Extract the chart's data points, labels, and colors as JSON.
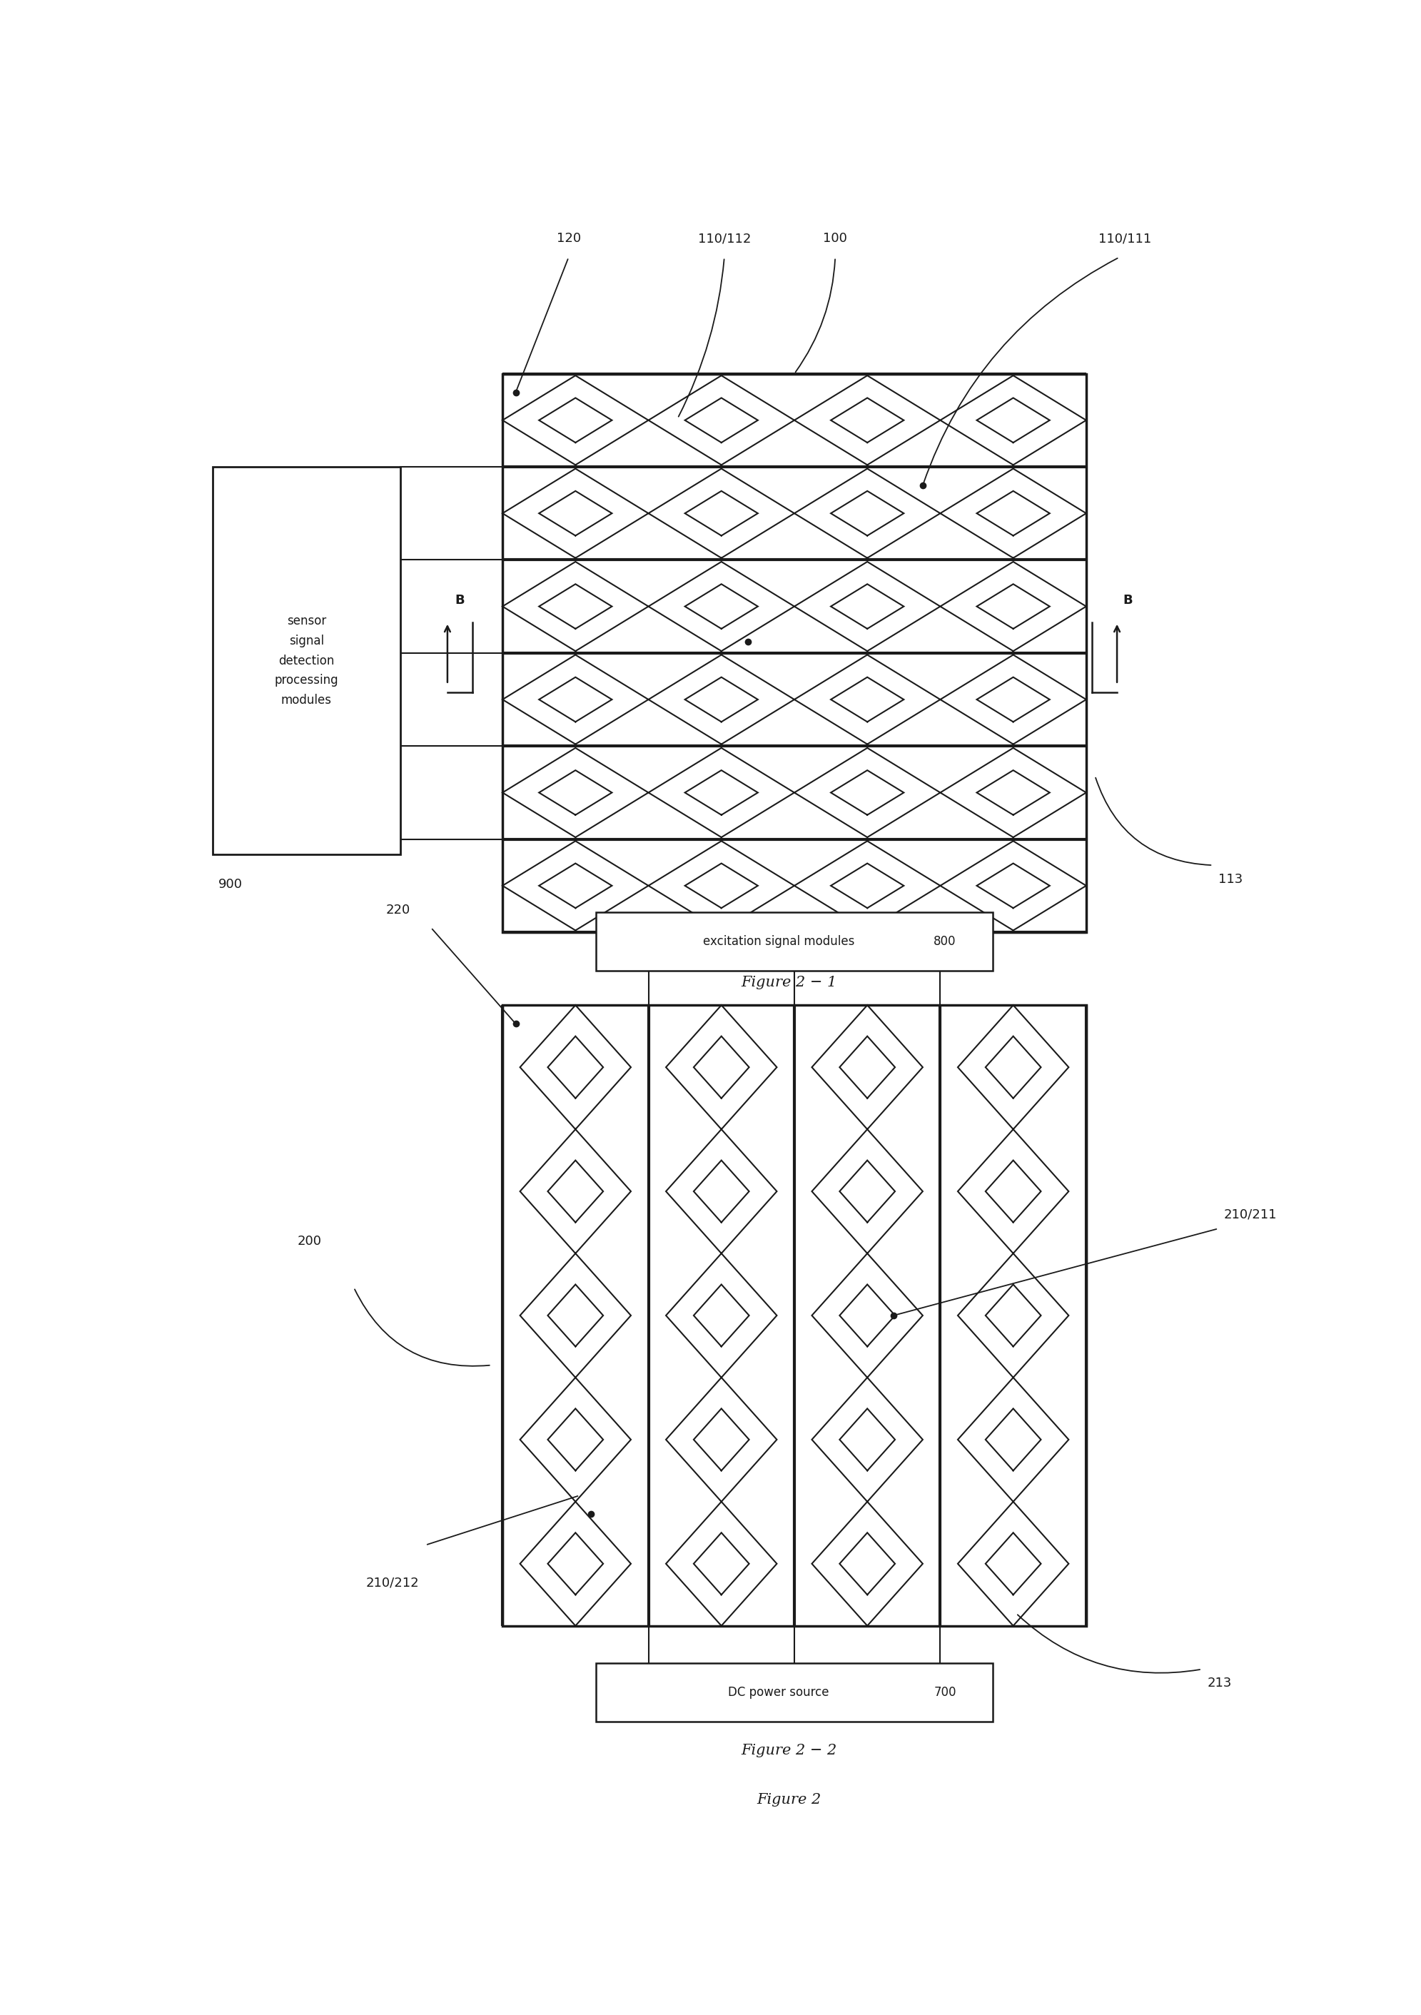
{
  "fig_width": 19.91,
  "fig_height": 28.23,
  "bg_color": "#ffffff",
  "line_color": "#1a1a1a",
  "fig1": {
    "title": "Figure 2 − 1",
    "label_100": "100",
    "label_110_112": "110/112",
    "label_110_111": "110/111",
    "label_120": "120",
    "label_113": "113",
    "label_900": "900",
    "label_B": "B",
    "sensor_box_text": "sensor\nsignal\ndetection\nprocessing\nmodules"
  },
  "fig2": {
    "title": "Figure 2 − 2",
    "label_200": "200",
    "label_210_211": "210/211",
    "label_210_212": "210/212",
    "label_220": "220",
    "label_213": "213",
    "label_700": "700",
    "label_800": "800",
    "excitation_text": "excitation signal modules",
    "dc_text": "DC power source"
  },
  "figure2_label": "Figure 2"
}
